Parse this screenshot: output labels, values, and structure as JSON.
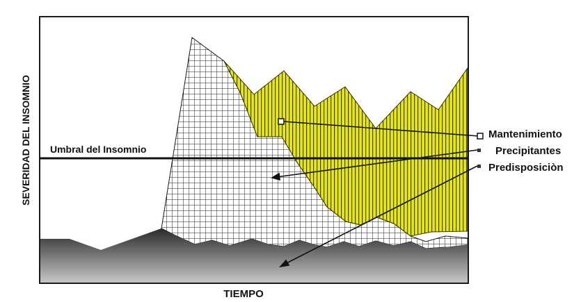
{
  "axes": {
    "y_label": "SEVERIDAD DEL INSOMNIO",
    "x_label": "TIEMPO"
  },
  "threshold": {
    "label": "Umbral del  Insomnio"
  },
  "legend": {
    "items": [
      {
        "label": "Mantenimiento",
        "marker": "hollow-square"
      },
      {
        "label": "Precipitantes",
        "marker": "filled-square"
      },
      {
        "label": "Predisposiciòn",
        "marker": "filled-square"
      }
    ]
  },
  "colors": {
    "maintenance_fill": "#e6e61e",
    "maintenance_stripe": "#4a4a00",
    "precipitating_grid": "#1a1a1a",
    "predisposition_top": "#2a2a2a",
    "predisposition_bottom": "#c8c8c8",
    "threshold_line": "#111111"
  }
}
